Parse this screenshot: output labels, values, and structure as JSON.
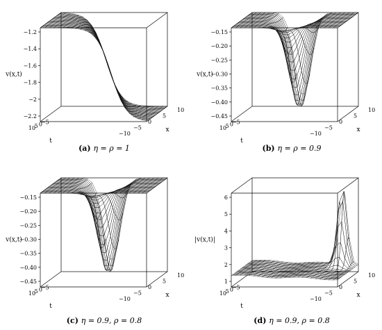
{
  "chart_data": [
    {
      "id": "a",
      "type": "surface3d",
      "caption": {
        "letter": "(a)",
        "text": "η = ρ = 1"
      },
      "zlabel": "v(x,t)",
      "xlabel": "x",
      "tlabel": "t",
      "x_ticks": [
        "−10",
        "−5",
        "0",
        "5",
        "10"
      ],
      "t_ticks": [
        "10",
        "5",
        "0",
        "−5"
      ],
      "z_ticks": [
        "−1.2",
        "−1.4",
        "−1.6",
        "−1.8",
        "−2",
        "−2.2"
      ],
      "zlim": [
        -2.25,
        -1.15
      ],
      "colors": {
        "high": "#8fe8e6",
        "mid": "#8a5a8c",
        "low": "#e08080"
      }
    },
    {
      "id": "b",
      "type": "surface3d",
      "caption": {
        "letter": "(b)",
        "text": "η = ρ = 0.9"
      },
      "zlabel": "v(x,t)",
      "xlabel": "x",
      "tlabel": "t",
      "x_ticks": [
        "−10",
        "−5",
        "0",
        "5",
        "10"
      ],
      "t_ticks": [
        "10",
        "5",
        "0",
        "−5"
      ],
      "z_ticks": [
        "−0.15",
        "−0.20",
        "−0.25",
        "−0.30",
        "−0.35",
        "−0.40",
        "−0.45"
      ],
      "zlim": [
        -0.46,
        -0.14
      ],
      "colors": {
        "high": "#d8dcec",
        "mid": "#9aa0c8",
        "low": "#8a9a3a"
      }
    },
    {
      "id": "c",
      "type": "surface3d",
      "caption": {
        "letter": "(c)",
        "text": "η = 0.9,  ρ = 0.8"
      },
      "zlabel": "v(x,t)",
      "xlabel": "x",
      "tlabel": "t",
      "x_ticks": [
        "−10",
        "−5",
        "0",
        "5",
        "10"
      ],
      "t_ticks": [
        "10",
        "5",
        "0",
        "−5"
      ],
      "z_ticks": [
        "−0.15",
        "−0.20",
        "−0.25",
        "−0.30",
        "−0.35",
        "−0.40",
        "−0.45"
      ],
      "zlim": [
        -0.46,
        -0.14
      ],
      "colors": {
        "high": "#d8dcec",
        "mid": "#9aa0c8",
        "low": "#8a9a3a"
      }
    },
    {
      "id": "d",
      "type": "surface3d",
      "caption": {
        "letter": "(d)",
        "text": "η = 0.9,  ρ = 0.8"
      },
      "zlabel": "|v(x,t)|",
      "xlabel": "x",
      "tlabel": "t",
      "x_ticks": [
        "−10",
        "−5",
        "0",
        "5",
        "10"
      ],
      "t_ticks": [
        "10",
        "5",
        "0",
        "−5"
      ],
      "z_ticks": [
        "6",
        "5",
        "4",
        "3",
        "2",
        "1"
      ],
      "zlim": [
        0.5,
        6.5
      ],
      "colors": {
        "high": "#e080c8",
        "mid": "#8ad08a",
        "low": "#e09a80"
      }
    }
  ]
}
